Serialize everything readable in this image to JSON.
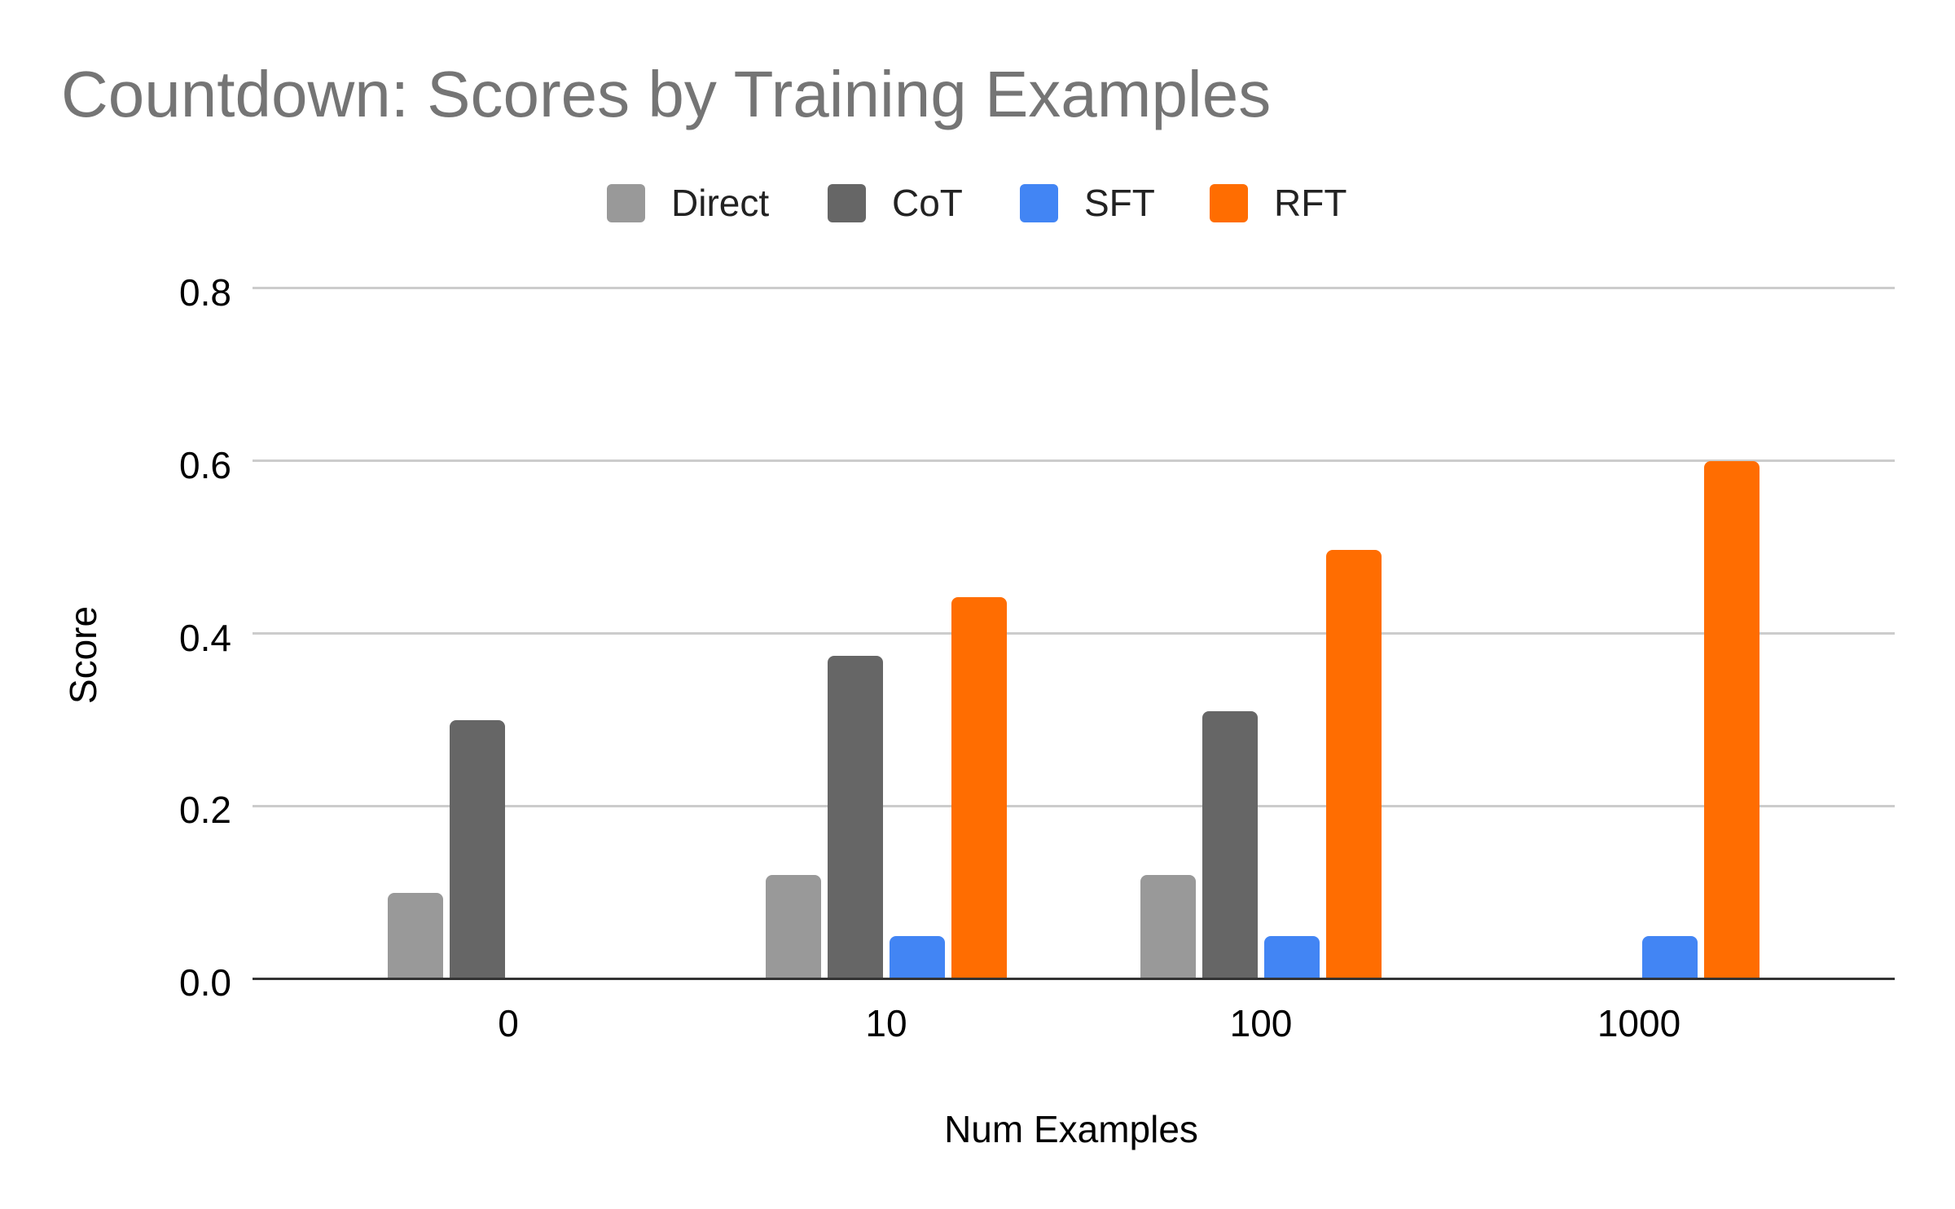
{
  "chart_data": {
    "type": "bar",
    "title": "Countdown: Scores by Training Examples",
    "xlabel": "Num Examples",
    "ylabel": "Score",
    "categories": [
      "0",
      "10",
      "100",
      "1000"
    ],
    "series": [
      {
        "name": "Direct",
        "color": "#999999",
        "values": [
          0.1,
          0.12,
          0.12,
          null
        ]
      },
      {
        "name": "CoT",
        "color": "#666666",
        "values": [
          0.3,
          0.375,
          0.31,
          null
        ]
      },
      {
        "name": "SFT",
        "color": "#4285f4",
        "values": [
          null,
          0.05,
          0.05,
          0.05
        ]
      },
      {
        "name": "RFT",
        "color": "#ff6d01",
        "values": [
          null,
          0.443,
          0.497,
          0.6
        ]
      }
    ],
    "ylim": [
      0,
      0.8
    ],
    "yticks": [
      "0.0",
      "0.2",
      "0.4",
      "0.6",
      "0.8"
    ],
    "grid": true,
    "legend_position": "top"
  },
  "title": "Countdown: Scores by Training Examples",
  "legend": [
    {
      "label": "Direct",
      "color": "#999999"
    },
    {
      "label": "CoT",
      "color": "#666666"
    },
    {
      "label": "SFT",
      "color": "#4285f4"
    },
    {
      "label": "RFT",
      "color": "#ff6d01"
    }
  ],
  "axes": {
    "xlabel": "Num Examples",
    "ylabel": "Score",
    "yticks": [
      "0.8",
      "0.6",
      "0.4",
      "0.2",
      "0.0"
    ],
    "xticks": [
      "0",
      "10",
      "100",
      "1000"
    ]
  }
}
